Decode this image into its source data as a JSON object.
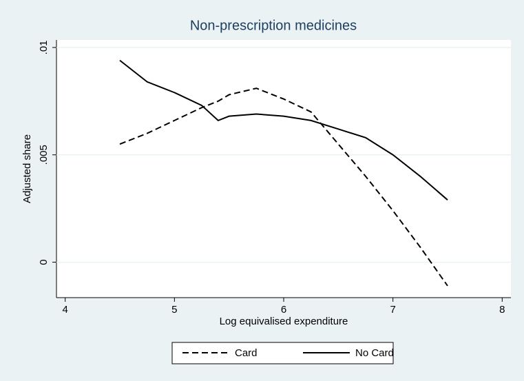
{
  "chart_data": {
    "type": "line",
    "title": "Non-prescription medicines",
    "x_label": "Log equivalised expenditure",
    "y_label": "Adjusted share",
    "x": [
      4.5,
      4.75,
      5,
      5.25,
      5.4,
      5.5,
      5.75,
      6,
      6.25,
      6.5,
      6.75,
      7,
      7.25,
      7.5
    ],
    "series": [
      {
        "name": "Card",
        "color": "#000000",
        "dash": "dashed",
        "values": [
          0.0055,
          0.006,
          0.0066,
          0.0072,
          0.0075,
          0.0078,
          0.0081,
          0.0076,
          0.007,
          0.0055,
          0.004,
          0.0024,
          0.0007,
          -0.0011
        ]
      },
      {
        "name": "No Card",
        "color": "#000000",
        "dash": "solid",
        "values": [
          0.0094,
          0.0084,
          0.0079,
          0.0073,
          0.0066,
          0.0068,
          0.0069,
          0.0068,
          0.0066,
          0.0062,
          0.0058,
          0.005,
          0.004,
          0.0029
        ]
      }
    ],
    "xlim": [
      3.92,
      8.08
    ],
    "xticks": [
      4,
      5,
      6,
      7,
      8
    ],
    "ylim": [
      -0.00165,
      0.01035
    ],
    "yticks": [
      0,
      {
        "value": 0.005,
        "label": ".005"
      },
      {
        "value": 0.01,
        "label": ".01"
      }
    ],
    "grid": true,
    "legend": "bottom"
  }
}
